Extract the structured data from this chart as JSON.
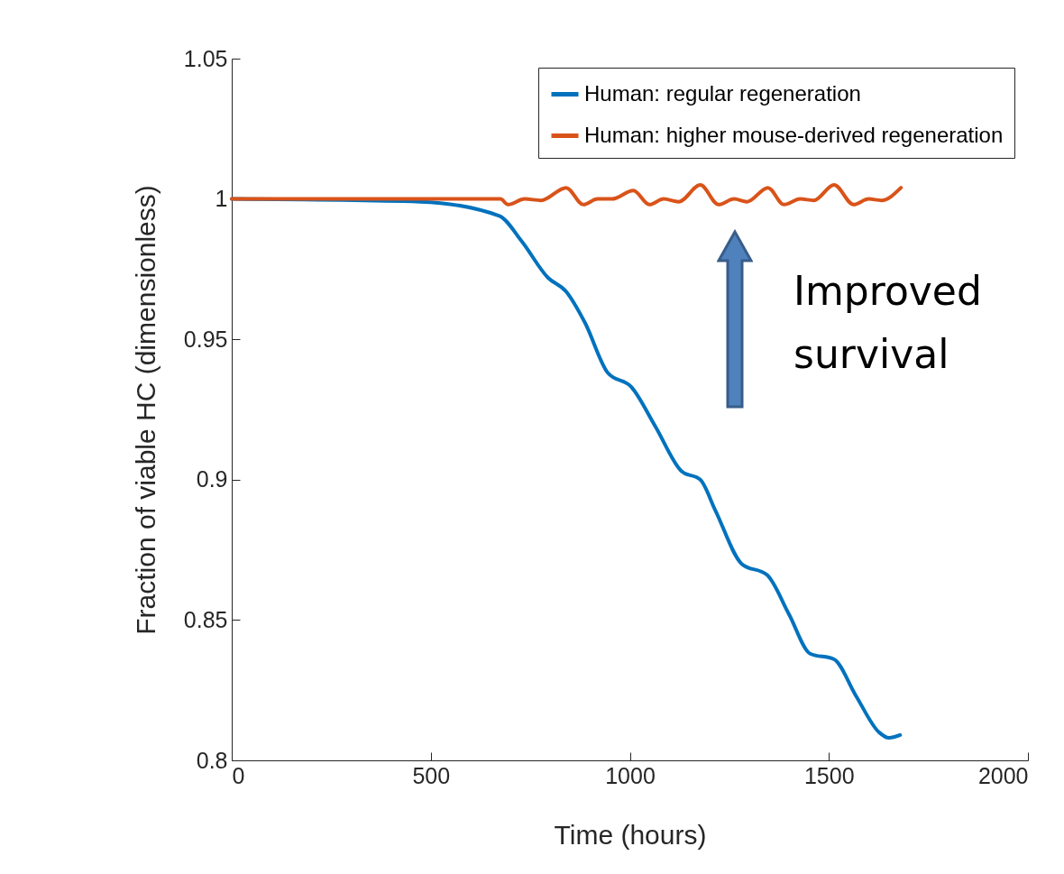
{
  "chart_data": {
    "type": "line",
    "xlabel": "Time (hours)",
    "ylabel": "Fraction of viable HC (dimensionless)",
    "xlim": [
      0,
      2000
    ],
    "xticks": [
      0,
      500,
      1000,
      1500,
      2000
    ],
    "ylim": [
      0.8,
      1.05
    ],
    "yticks": [
      0.8,
      0.85,
      0.9,
      0.95,
      1,
      1.05
    ],
    "grid": false,
    "legend": "top right",
    "line_style": "solid",
    "marker": "none",
    "annotations": [
      "Improved survival"
    ],
    "series": [
      {
        "name": "Human: regular regeneration",
        "color": "#0072bd",
        "x": [
          0,
          474,
          672,
          728,
          794,
          840,
          887,
          945,
          1004,
          1064,
          1130,
          1177,
          1215,
          1281,
          1345,
          1400,
          1453,
          1513,
          1568,
          1626,
          1651,
          1679
        ],
        "values": [
          1.0,
          0.999,
          0.994,
          0.985,
          0.972,
          0.967,
          0.956,
          0.938,
          0.933,
          0.919,
          0.903,
          0.9,
          0.889,
          0.87,
          0.866,
          0.852,
          0.838,
          0.836,
          0.823,
          0.81,
          0.808,
          0.809
        ]
      },
      {
        "name": "Human: higher mouse-derived regeneration",
        "color": "#d95319",
        "x": [
          0,
          675,
          694,
          736,
          777,
          840,
          883,
          919,
          955,
          1009,
          1049,
          1085,
          1123,
          1177,
          1223,
          1262,
          1294,
          1347,
          1387,
          1428,
          1462,
          1513,
          1562,
          1600,
          1632,
          1681
        ],
        "values": [
          1.0,
          1.0,
          0.998,
          1.0,
          0.9995,
          1.004,
          0.998,
          1.0,
          1.0,
          1.003,
          0.998,
          1.0,
          0.999,
          1.005,
          0.998,
          1.0,
          0.999,
          1.004,
          0.998,
          1.0,
          0.9995,
          1.005,
          0.998,
          1.0,
          0.9995,
          1.004
        ]
      }
    ]
  }
}
